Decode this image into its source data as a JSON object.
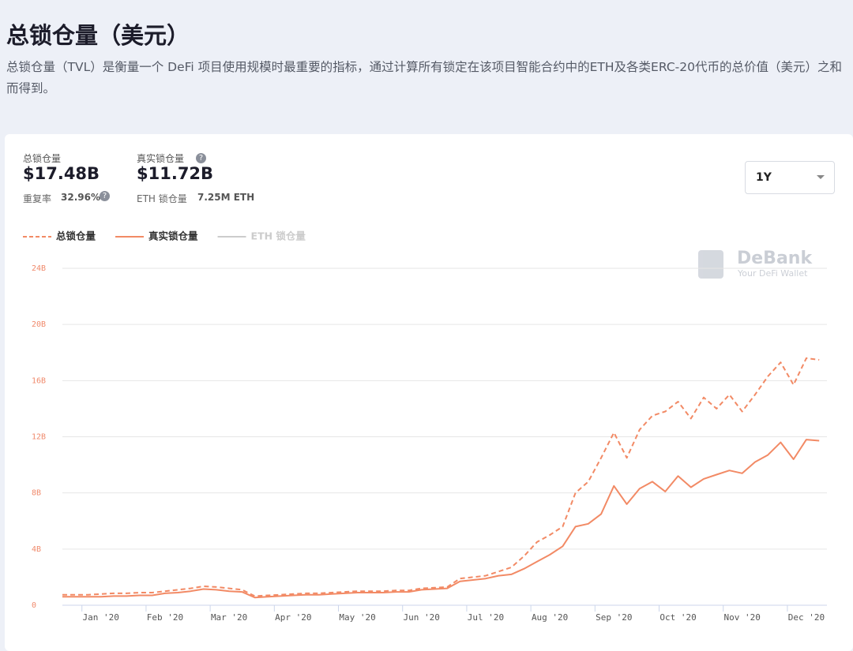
{
  "header": {
    "title": "总锁仓量（美元）",
    "description": "总锁仓量（TVL）是衡量一个 DeFi 项目使用规模时最重要的指标，通过计算所有锁定在该项目智能合约中的ETH及各类ERC-20代币的总价值（美元）之和而得到。"
  },
  "stats": {
    "total_label": "总锁仓量",
    "total_value": "$17.48B",
    "dup_label": "重复率",
    "dup_value": "32.96%",
    "real_label": "真实锁仓量",
    "real_value": "$11.72B",
    "eth_label": "ETH 锁仓量",
    "eth_value": "7.25M ETH"
  },
  "range_select": "1Y",
  "watermark": {
    "brand": "DeBank",
    "tagline": "Your DeFi Wallet"
  },
  "chart_data": {
    "type": "line",
    "categories": [
      null,
      null,
      null,
      "Jan '20",
      null,
      null,
      null,
      null,
      "Feb '20",
      null,
      null,
      null,
      null,
      "Mar '20",
      null,
      null,
      null,
      null,
      "Apr '20",
      null,
      null,
      null,
      null,
      "May '20",
      null,
      null,
      null,
      null,
      "Jun '20",
      null,
      null,
      null,
      null,
      "Jul '20",
      null,
      null,
      null,
      null,
      "Aug '20",
      null,
      null,
      null,
      null,
      "Sep '20",
      null,
      null,
      null,
      null,
      "Oct '20",
      null,
      null,
      null,
      null,
      "Nov '20",
      null,
      null,
      null,
      null,
      "Dec '20",
      null
    ],
    "series": [
      {
        "name": "总锁仓量",
        "color": "#f28a65",
        "dashed": true,
        "values": [
          0.75,
          0.75,
          0.75,
          0.8,
          0.85,
          0.85,
          0.9,
          0.9,
          1.0,
          1.1,
          1.2,
          1.35,
          1.3,
          1.2,
          1.1,
          0.65,
          0.7,
          0.75,
          0.8,
          0.85,
          0.85,
          0.9,
          0.95,
          1.0,
          1.0,
          1.0,
          1.05,
          1.05,
          1.2,
          1.25,
          1.3,
          1.9,
          2.0,
          2.1,
          2.4,
          2.7,
          3.5,
          4.5,
          5.0,
          5.6,
          8.0,
          8.8,
          10.5,
          12.3,
          10.5,
          12.5,
          13.5,
          13.8,
          14.5,
          13.3,
          14.8,
          14.0,
          15.0,
          13.8,
          15.0,
          16.3,
          17.3,
          15.7,
          17.6,
          17.48
        ]
      },
      {
        "name": "真实锁仓量",
        "color": "#f28a65",
        "dashed": false,
        "values": [
          0.6,
          0.6,
          0.6,
          0.6,
          0.65,
          0.65,
          0.7,
          0.7,
          0.85,
          0.9,
          1.0,
          1.15,
          1.1,
          1.0,
          0.95,
          0.55,
          0.6,
          0.65,
          0.7,
          0.75,
          0.75,
          0.8,
          0.85,
          0.9,
          0.9,
          0.9,
          0.95,
          0.95,
          1.1,
          1.15,
          1.2,
          1.7,
          1.8,
          1.9,
          2.1,
          2.2,
          2.6,
          3.1,
          3.6,
          4.2,
          5.6,
          5.8,
          6.5,
          8.5,
          7.2,
          8.3,
          8.8,
          8.1,
          9.2,
          8.4,
          9.0,
          9.3,
          9.6,
          9.4,
          10.2,
          10.7,
          11.6,
          10.4,
          11.8,
          11.72
        ]
      },
      {
        "name": "ETH 锁仓量",
        "color": "#cccccc",
        "hidden": true
      }
    ],
    "ylim": [
      0,
      24
    ],
    "yticks": [
      0,
      {
        "value": 4,
        "label": "4B"
      },
      {
        "value": 8,
        "label": "8B"
      },
      {
        "value": 12,
        "label": "12B"
      },
      {
        "value": 16,
        "label": "16B"
      },
      {
        "value": 20,
        "label": "20B"
      },
      {
        "value": 24,
        "label": "24B"
      }
    ],
    "grid": true
  }
}
